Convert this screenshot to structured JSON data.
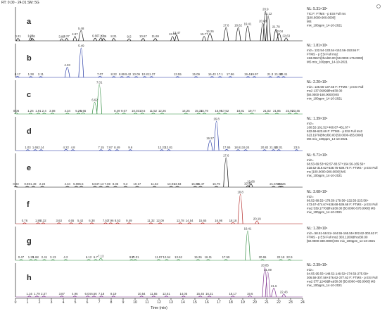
{
  "header": "RT: 0.00 - 24.01  SM: 5G",
  "x_axis": {
    "label": "Time (min)",
    "xlim": [
      0,
      24
    ],
    "xticks": [
      0,
      1,
      2,
      3,
      4,
      5,
      6,
      7,
      8,
      9,
      10,
      11,
      12,
      13,
      14,
      15,
      16,
      17,
      18,
      19,
      20,
      21,
      22,
      23,
      24
    ]
  },
  "chart_data": [
    {
      "type": "line",
      "panel": "a",
      "nl": "NL: 5.31×10⁶",
      "color": "#000000",
      "ylim": [
        0,
        100
      ],
      "info": [
        "TIC F: FTMS - p ESI Full ms",
        "[100.0000-900.0000]",
        "MS",
        "mix_100ppm_14-10-2021"
      ],
      "x": [
        0.21,
        1.26,
        1.41,
        3.86,
        4.27,
        4.97,
        5.48,
        6.66,
        7.13,
        7.36,
        8.21,
        9.5,
        10.67,
        11.69,
        13.13,
        13.47,
        15.77,
        16.26,
        17.6,
        18.62,
        19.41,
        20.68,
        20.9,
        21.12,
        21.78,
        22.04,
        22.63
      ],
      "values": [
        8,
        10,
        8,
        7,
        8,
        15,
        35,
        9,
        10,
        8,
        8,
        7,
        8,
        8,
        15,
        20,
        15,
        25,
        45,
        45,
        50,
        60,
        100,
        85,
        40,
        25,
        10
      ]
    },
    {
      "type": "line",
      "panel": "b",
      "nl": "NL: 1.81×10⁶",
      "color": "#1a2fa0",
      "ylim": [
        0,
        100
      ],
      "info": [
        "m/z= 132.54-133.54+152.56-153.56 F:",
        "FTMS - p ESI Full ms2",
        "153.0557@hcd30.00 [50.0000-175.0000]",
        "MS mix_100ppm_14-10-2021"
      ],
      "x": [
        0.17,
        1.28,
        2.11,
        4.33,
        5.49,
        7.07,
        8.22,
        8.89,
        9.42,
        10.09,
        10.8,
        11.37,
        13.55,
        15.09,
        16.43,
        17.1,
        17.96,
        19.44,
        19.97,
        21.3,
        21.98,
        22.41
      ],
      "values": [
        4,
        3,
        3,
        35,
        100,
        4,
        3,
        3,
        3,
        3,
        3,
        3,
        3,
        3,
        3,
        3,
        3,
        3,
        3,
        3,
        3,
        3
      ]
    },
    {
      "type": "line",
      "panel": "c",
      "nl": "NL: 2.20×10⁶",
      "color": "#2e8b3e",
      "ylim": [
        0,
        100
      ],
      "info": [
        "m/z= 136.56-137.56 F: FTMS - p ESI Full",
        "ms2 137.0609@hcd30.00",
        "[50.0000-160.0000] MS",
        "mix_100ppm_14-10-2021"
      ],
      "x": [
        0.06,
        1.26,
        1.91,
        2.4,
        3.08,
        4.34,
        5.26,
        5.65,
        6.62,
        7.01,
        8.49,
        9.07,
        10.03,
        10.6,
        11.52,
        12.26,
        14.25,
        15.31,
        15.79,
        16.99,
        17.52,
        18.81,
        19.77,
        21.02,
        21.85,
        22.92,
        23.45
      ],
      "values": [
        4,
        3,
        3,
        3,
        3,
        3,
        3,
        4,
        40,
        100,
        4,
        3,
        3,
        3,
        3,
        3,
        3,
        3,
        3,
        3,
        3,
        3,
        3,
        3,
        3,
        3,
        3
      ]
    },
    {
      "type": "line",
      "panel": "d",
      "nl": "NL: 1.39×10⁶",
      "color": "#1a2fa0",
      "ylim": [
        0,
        100
      ],
      "info": [
        "m/z=",
        "160.52-161.52+460.67-461.67+",
        "622.69-623.69 F: FTMS - p ESI Full ms2",
        "623.1970@hcd30.00 [50.0000-655.0000]",
        "MS mix_100ppm_14-10-2021"
      ],
      "x": [
        1.03,
        1.65,
        2.14,
        4.22,
        4.8,
        7.15,
        7.87,
        8.49,
        9.6,
        12.23,
        12.81,
        16.27,
        16.8,
        17.65,
        18.61,
        19.24,
        20.82,
        21.56,
        22.01,
        23.5
      ],
      "values": [
        3,
        3,
        3,
        4,
        3,
        3,
        3,
        3,
        3,
        3,
        3,
        35,
        100,
        4,
        3,
        3,
        3,
        3,
        3,
        3
      ]
    },
    {
      "type": "line",
      "panel": "e",
      "nl": "NL: 5.71×10⁶",
      "color": "#000000",
      "ylim": [
        0,
        100
      ],
      "info": [
        "m/z=",
        "68.53-69.53+82.57-83.57+164.56-165.56+",
        "318.62-319.62+638.75-639.75 F: FTMS - p ESI Full",
        "ms [100.0000-900.0000] MS",
        "mix_100ppm_14-10-2021"
      ],
      "x": [
        0.03,
        0.98,
        1.49,
        2.24,
        4.34,
        5.08,
        5.5,
        6.64,
        7.13,
        7.69,
        8.35,
        9.2,
        10.17,
        11.62,
        13.01,
        13.53,
        15.02,
        15.47,
        16.79,
        17.6,
        19.43,
        19.68,
        21.57,
        22.1,
        22.26
      ],
      "values": [
        3,
        3,
        3,
        3,
        3,
        3,
        3,
        3,
        3,
        3,
        3,
        3,
        3,
        3,
        3,
        3,
        3,
        3,
        3,
        100,
        5,
        12,
        3,
        3,
        3
      ]
    },
    {
      "type": "line",
      "panel": "f",
      "nl": "NL: 3.68×10⁶",
      "color": "#b0201e",
      "ylim": [
        0,
        100
      ],
      "info": [
        "m/z=",
        "88.52-89.52+178.56-179.56+222.56-223.56+",
        "473.67-474.67+538.68-539.68 F: FTMS - p ESI Full",
        "ms2 539.1770@hcd30.00 [50.0000-570.0000] MS",
        "mix_100ppm_14-10-2021"
      ],
      "x": [
        0.76,
        1.89,
        2.32,
        3.63,
        4.65,
        5.42,
        6.38,
        7.53,
        7.96,
        8.53,
        9.49,
        11.32,
        12.09,
        13.78,
        14.54,
        15.65,
        16.98,
        18.18,
        18.8,
        20.19
      ],
      "values": [
        3,
        3,
        3,
        3,
        3,
        3,
        3,
        3,
        3,
        3,
        3,
        3,
        3,
        3,
        3,
        3,
        3,
        4,
        100,
        10
      ]
    },
    {
      "type": "line",
      "panel": "g",
      "nl": "NL: 1.28×10⁶",
      "color": "#2e8b3e",
      "ylim": [
        0,
        100
      ],
      "info": [
        "m/z= 58.51-59.51+164.55-165.55+302.62-303.62 F:",
        "FTMS - p ESI Full ms2 303.1200@hcd30.00",
        "[50.0000-330.0000] MS mix_100ppm_14-10-2021"
      ],
      "x": [
        0.47,
        1.29,
        1.68,
        2.41,
        3.13,
        4.2,
        6.12,
        6.7,
        7.13,
        9.7,
        10.01,
        11.97,
        12.64,
        13.62,
        15.26,
        16.11,
        17.59,
        19.41,
        20.65,
        22.18,
        22.9
      ],
      "values": [
        3,
        3,
        3,
        3,
        3,
        3,
        3,
        3,
        7,
        3,
        3,
        3,
        3,
        3,
        3,
        3,
        3,
        100,
        3,
        3,
        3
      ]
    },
    {
      "type": "line",
      "panel": "h",
      "nl": "NL: 2.39×10⁶",
      "color": "#7a2a8a",
      "ylim": [
        0,
        100
      ],
      "info": [
        "m/z=",
        "94.55-95.55+148.52-149.52+274.59-275.59+",
        "306.58-307.58+376.62-377.62 F: FTMS - p ESI Full",
        "ms2 377.1248@hcd30.00 [50.0000-405.0000] MS",
        "mix_100ppm_14-10-2021"
      ],
      "x": [
        1.16,
        1.79,
        2.37,
        3.87,
        4.96,
        6.04,
        6.56,
        7.18,
        8.19,
        10.54,
        11.55,
        12.61,
        14.05,
        15.45,
        16.21,
        18.17,
        19.6,
        20.85,
        21.09,
        21.6,
        22.43
      ],
      "values": [
        3,
        3,
        3,
        3,
        3,
        3,
        3,
        3,
        3,
        3,
        3,
        3,
        3,
        3,
        3,
        3,
        4,
        100,
        85,
        30,
        10
      ]
    }
  ]
}
